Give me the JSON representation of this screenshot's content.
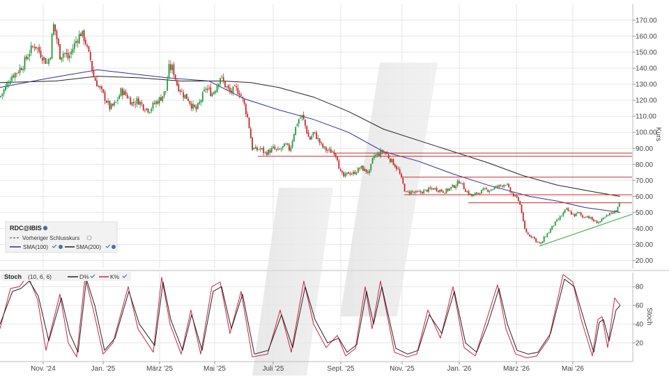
{
  "chart_data": [
    {
      "type": "candlestick",
      "instrument": "RDC@IBIS",
      "ylabel": "Kurs",
      "ylim": [
        15,
        180
      ],
      "yticks": [
        20,
        30,
        40,
        50,
        60,
        70,
        80,
        90,
        100,
        110,
        120,
        130,
        140,
        150,
        160,
        170
      ],
      "ytick_labels": [
        "20.00",
        "30.00",
        "40.00",
        "50.00",
        "60.00",
        "70.00",
        "80.00",
        "90.00",
        "100.00",
        "110.00",
        "120.00",
        "130.00",
        "140.00",
        "150.00",
        "160.00",
        "170.00"
      ],
      "x_tick_labels": [
        "Nov. '24",
        "Jan. '25",
        "März '25",
        "Mai '25",
        "Juli '25",
        "Sept. '25",
        "Nov. '25",
        "Jan. '26",
        "März '26",
        "Mai '26"
      ],
      "grid": true,
      "legend": {
        "title": "RDC@IBIS",
        "items": [
          {
            "label": "Vorheriger Schlusskurs",
            "style": "dashed",
            "color": "#333333"
          },
          {
            "label": "SMA(100)",
            "style": "solid",
            "color": "#2e2e99"
          },
          {
            "label": "SMA(200)",
            "style": "solid",
            "color": "#222222"
          }
        ]
      },
      "price_path": [
        [
          0,
          122
        ],
        [
          8,
          128
        ],
        [
          16,
          135
        ],
        [
          25,
          138
        ],
        [
          33,
          142
        ],
        [
          42,
          150
        ],
        [
          50,
          155
        ],
        [
          60,
          148
        ],
        [
          68,
          143
        ],
        [
          73,
          150
        ],
        [
          76,
          168
        ],
        [
          80,
          162
        ],
        [
          86,
          148
        ],
        [
          92,
          150
        ],
        [
          98,
          146
        ],
        [
          104,
          152
        ],
        [
          110,
          158
        ],
        [
          116,
          162
        ],
        [
          122,
          158
        ],
        [
          126,
          150
        ],
        [
          130,
          145
        ],
        [
          134,
          135
        ],
        [
          142,
          128
        ],
        [
          150,
          122
        ],
        [
          158,
          115
        ],
        [
          166,
          118
        ],
        [
          174,
          126
        ],
        [
          182,
          123
        ],
        [
          190,
          118
        ],
        [
          198,
          120
        ],
        [
          206,
          116
        ],
        [
          214,
          114
        ],
        [
          222,
          118
        ],
        [
          230,
          121
        ],
        [
          238,
          126
        ],
        [
          242,
          140
        ],
        [
          248,
          140
        ],
        [
          254,
          130
        ],
        [
          262,
          124
        ],
        [
          270,
          121
        ],
        [
          276,
          116
        ],
        [
          282,
          114
        ],
        [
          288,
          120
        ],
        [
          296,
          128
        ],
        [
          304,
          124
        ],
        [
          310,
          128
        ],
        [
          316,
          135
        ],
        [
          322,
          130
        ],
        [
          330,
          125
        ],
        [
          338,
          127
        ],
        [
          344,
          125
        ],
        [
          350,
          118
        ],
        [
          356,
          108
        ],
        [
          362,
          90
        ],
        [
          368,
          89
        ],
        [
          374,
          90
        ],
        [
          380,
          87
        ],
        [
          386,
          88
        ],
        [
          392,
          90
        ],
        [
          398,
          88
        ],
        [
          404,
          90
        ],
        [
          410,
          92
        ],
        [
          416,
          89
        ],
        [
          422,
          100
        ],
        [
          428,
          108
        ],
        [
          434,
          110
        ],
        [
          438,
          104
        ],
        [
          444,
          95
        ],
        [
          450,
          100
        ],
        [
          456,
          96
        ],
        [
          462,
          91
        ],
        [
          468,
          89
        ],
        [
          474,
          88
        ],
        [
          480,
          88
        ],
        [
          484,
          84
        ],
        [
          488,
          75
        ],
        [
          494,
          72
        ],
        [
          500,
          75
        ],
        [
          506,
          74
        ],
        [
          512,
          76
        ],
        [
          518,
          78
        ],
        [
          524,
          76
        ],
        [
          530,
          75
        ],
        [
          536,
          85
        ],
        [
          542,
          86
        ],
        [
          548,
          88
        ],
        [
          554,
          87
        ],
        [
          560,
          83
        ],
        [
          566,
          80
        ],
        [
          572,
          76
        ],
        [
          578,
          68
        ],
        [
          582,
          62
        ],
        [
          590,
          63
        ],
        [
          598,
          62
        ],
        [
          606,
          63
        ],
        [
          614,
          64
        ],
        [
          622,
          65
        ],
        [
          630,
          64
        ],
        [
          638,
          63
        ],
        [
          646,
          65
        ],
        [
          654,
          67
        ],
        [
          660,
          70
        ],
        [
          666,
          65
        ],
        [
          672,
          62
        ],
        [
          678,
          60
        ],
        [
          684,
          62
        ],
        [
          690,
          63
        ],
        [
          696,
          64
        ],
        [
          702,
          64
        ],
        [
          708,
          65
        ],
        [
          714,
          66
        ],
        [
          720,
          67
        ],
        [
          726,
          68
        ],
        [
          732,
          63
        ],
        [
          738,
          60
        ],
        [
          744,
          58
        ],
        [
          748,
          52
        ],
        [
          752,
          40
        ],
        [
          758,
          36
        ],
        [
          764,
          35
        ],
        [
          770,
          32
        ],
        [
          776,
          30
        ],
        [
          782,
          35
        ],
        [
          788,
          38
        ],
        [
          794,
          42
        ],
        [
          800,
          45
        ],
        [
          806,
          48
        ],
        [
          812,
          52
        ],
        [
          818,
          50
        ],
        [
          824,
          48
        ],
        [
          830,
          50
        ],
        [
          836,
          47
        ],
        [
          842,
          48
        ],
        [
          848,
          46
        ],
        [
          854,
          44
        ],
        [
          860,
          44
        ],
        [
          866,
          46
        ],
        [
          872,
          48
        ],
        [
          878,
          50
        ],
        [
          884,
          51
        ],
        [
          890,
          58
        ]
      ],
      "sma100": [
        [
          0,
          128
        ],
        [
          60,
          133
        ],
        [
          100,
          136
        ],
        [
          140,
          139
        ],
        [
          180,
          137
        ],
        [
          240,
          134
        ],
        [
          300,
          132
        ],
        [
          350,
          121
        ],
        [
          400,
          114
        ],
        [
          450,
          108
        ],
        [
          500,
          100
        ],
        [
          550,
          88
        ],
        [
          600,
          82
        ],
        [
          650,
          74
        ],
        [
          700,
          67
        ],
        [
          760,
          60
        ],
        [
          800,
          57
        ],
        [
          840,
          53
        ],
        [
          890,
          50
        ]
      ],
      "sma200": [
        [
          0,
          131
        ],
        [
          80,
          132
        ],
        [
          140,
          135
        ],
        [
          200,
          134
        ],
        [
          260,
          132
        ],
        [
          320,
          132
        ],
        [
          360,
          131
        ],
        [
          400,
          128
        ],
        [
          450,
          122
        ],
        [
          500,
          113
        ],
        [
          550,
          102
        ],
        [
          600,
          95
        ],
        [
          650,
          88
        ],
        [
          700,
          81
        ],
        [
          750,
          73
        ],
        [
          800,
          67
        ],
        [
          850,
          63
        ],
        [
          890,
          60
        ]
      ],
      "horizontal_levels": [
        {
          "y": 87,
          "x_from": 480,
          "x_to": 907
        },
        {
          "y": 85,
          "x_from": 370,
          "x_to": 907
        },
        {
          "y": 72,
          "x_from": 580,
          "x_to": 907
        },
        {
          "y": 61,
          "x_from": 580,
          "x_to": 907
        },
        {
          "y": 56,
          "x_from": 672,
          "x_to": 907
        }
      ],
      "trendline": {
        "from": [
          774,
          29
        ],
        "to": [
          908,
          49
        ]
      }
    },
    {
      "type": "line",
      "indicator": "Stoch",
      "params": "(10, 6, 6)",
      "ylabel": "Stoch",
      "ylim": [
        0,
        95
      ],
      "yticks": [
        20,
        40,
        60,
        80
      ],
      "series": [
        {
          "name": "D%",
          "color": "#222222",
          "values": [
            [
              0,
              40
            ],
            [
              18,
              75
            ],
            [
              30,
              78
            ],
            [
              42,
              86
            ],
            [
              55,
              70
            ],
            [
              70,
              22
            ],
            [
              88,
              68
            ],
            [
              100,
              30
            ],
            [
              112,
              10
            ],
            [
              124,
              88
            ],
            [
              136,
              60
            ],
            [
              150,
              12
            ],
            [
              165,
              25
            ],
            [
              185,
              75
            ],
            [
              200,
              40
            ],
            [
              222,
              17
            ],
            [
              234,
              85
            ],
            [
              245,
              45
            ],
            [
              262,
              12
            ],
            [
              275,
              50
            ],
            [
              290,
              12
            ],
            [
              306,
              75
            ],
            [
              318,
              80
            ],
            [
              332,
              35
            ],
            [
              348,
              72
            ],
            [
              365,
              8
            ],
            [
              385,
              12
            ],
            [
              404,
              50
            ],
            [
              420,
              15
            ],
            [
              438,
              80
            ],
            [
              452,
              45
            ],
            [
              470,
              20
            ],
            [
              486,
              25
            ],
            [
              498,
              10
            ],
            [
              512,
              18
            ],
            [
              526,
              75
            ],
            [
              536,
              40
            ],
            [
              548,
              80
            ],
            [
              568,
              14
            ],
            [
              585,
              8
            ],
            [
              600,
              12
            ],
            [
              616,
              50
            ],
            [
              634,
              30
            ],
            [
              652,
              75
            ],
            [
              668,
              20
            ],
            [
              684,
              10
            ],
            [
              700,
              40
            ],
            [
              716,
              78
            ],
            [
              728,
              40
            ],
            [
              742,
              12
            ],
            [
              758,
              8
            ],
            [
              772,
              10
            ],
            [
              790,
              30
            ],
            [
              810,
              88
            ],
            [
              824,
              80
            ],
            [
              836,
              50
            ],
            [
              852,
              10
            ],
            [
              860,
              42
            ],
            [
              866,
              45
            ],
            [
              874,
              22
            ],
            [
              884,
              55
            ],
            [
              890,
              60
            ]
          ]
        },
        {
          "name": "K%",
          "color": "#cc2244",
          "values": [
            [
              0,
              35
            ],
            [
              15,
              78
            ],
            [
              28,
              80
            ],
            [
              40,
              92
            ],
            [
              54,
              66
            ],
            [
              66,
              12
            ],
            [
              86,
              72
            ],
            [
              98,
              20
            ],
            [
              110,
              5
            ],
            [
              122,
              90
            ],
            [
              134,
              55
            ],
            [
              148,
              8
            ],
            [
              162,
              20
            ],
            [
              184,
              80
            ],
            [
              198,
              35
            ],
            [
              220,
              10
            ],
            [
              232,
              90
            ],
            [
              244,
              40
            ],
            [
              260,
              8
            ],
            [
              274,
              55
            ],
            [
              288,
              8
            ],
            [
              304,
              80
            ],
            [
              316,
              85
            ],
            [
              330,
              30
            ],
            [
              346,
              75
            ],
            [
              362,
              5
            ],
            [
              384,
              8
            ],
            [
              402,
              55
            ],
            [
              418,
              10
            ],
            [
              436,
              86
            ],
            [
              450,
              40
            ],
            [
              468,
              15
            ],
            [
              484,
              28
            ],
            [
              496,
              6
            ],
            [
              510,
              14
            ],
            [
              524,
              80
            ],
            [
              534,
              35
            ],
            [
              546,
              86
            ],
            [
              566,
              10
            ],
            [
              584,
              5
            ],
            [
              598,
              8
            ],
            [
              614,
              55
            ],
            [
              632,
              25
            ],
            [
              650,
              80
            ],
            [
              666,
              15
            ],
            [
              682,
              6
            ],
            [
              698,
              44
            ],
            [
              714,
              82
            ],
            [
              726,
              35
            ],
            [
              740,
              8
            ],
            [
              756,
              4
            ],
            [
              770,
              6
            ],
            [
              788,
              25
            ],
            [
              808,
              93
            ],
            [
              822,
              85
            ],
            [
              834,
              45
            ],
            [
              850,
              6
            ],
            [
              858,
              45
            ],
            [
              864,
              48
            ],
            [
              872,
              15
            ],
            [
              882,
              68
            ],
            [
              890,
              60
            ]
          ]
        }
      ]
    }
  ],
  "tools": {
    "marker_icon": "eye-settings-icon",
    "check_icon": "check-icon"
  }
}
